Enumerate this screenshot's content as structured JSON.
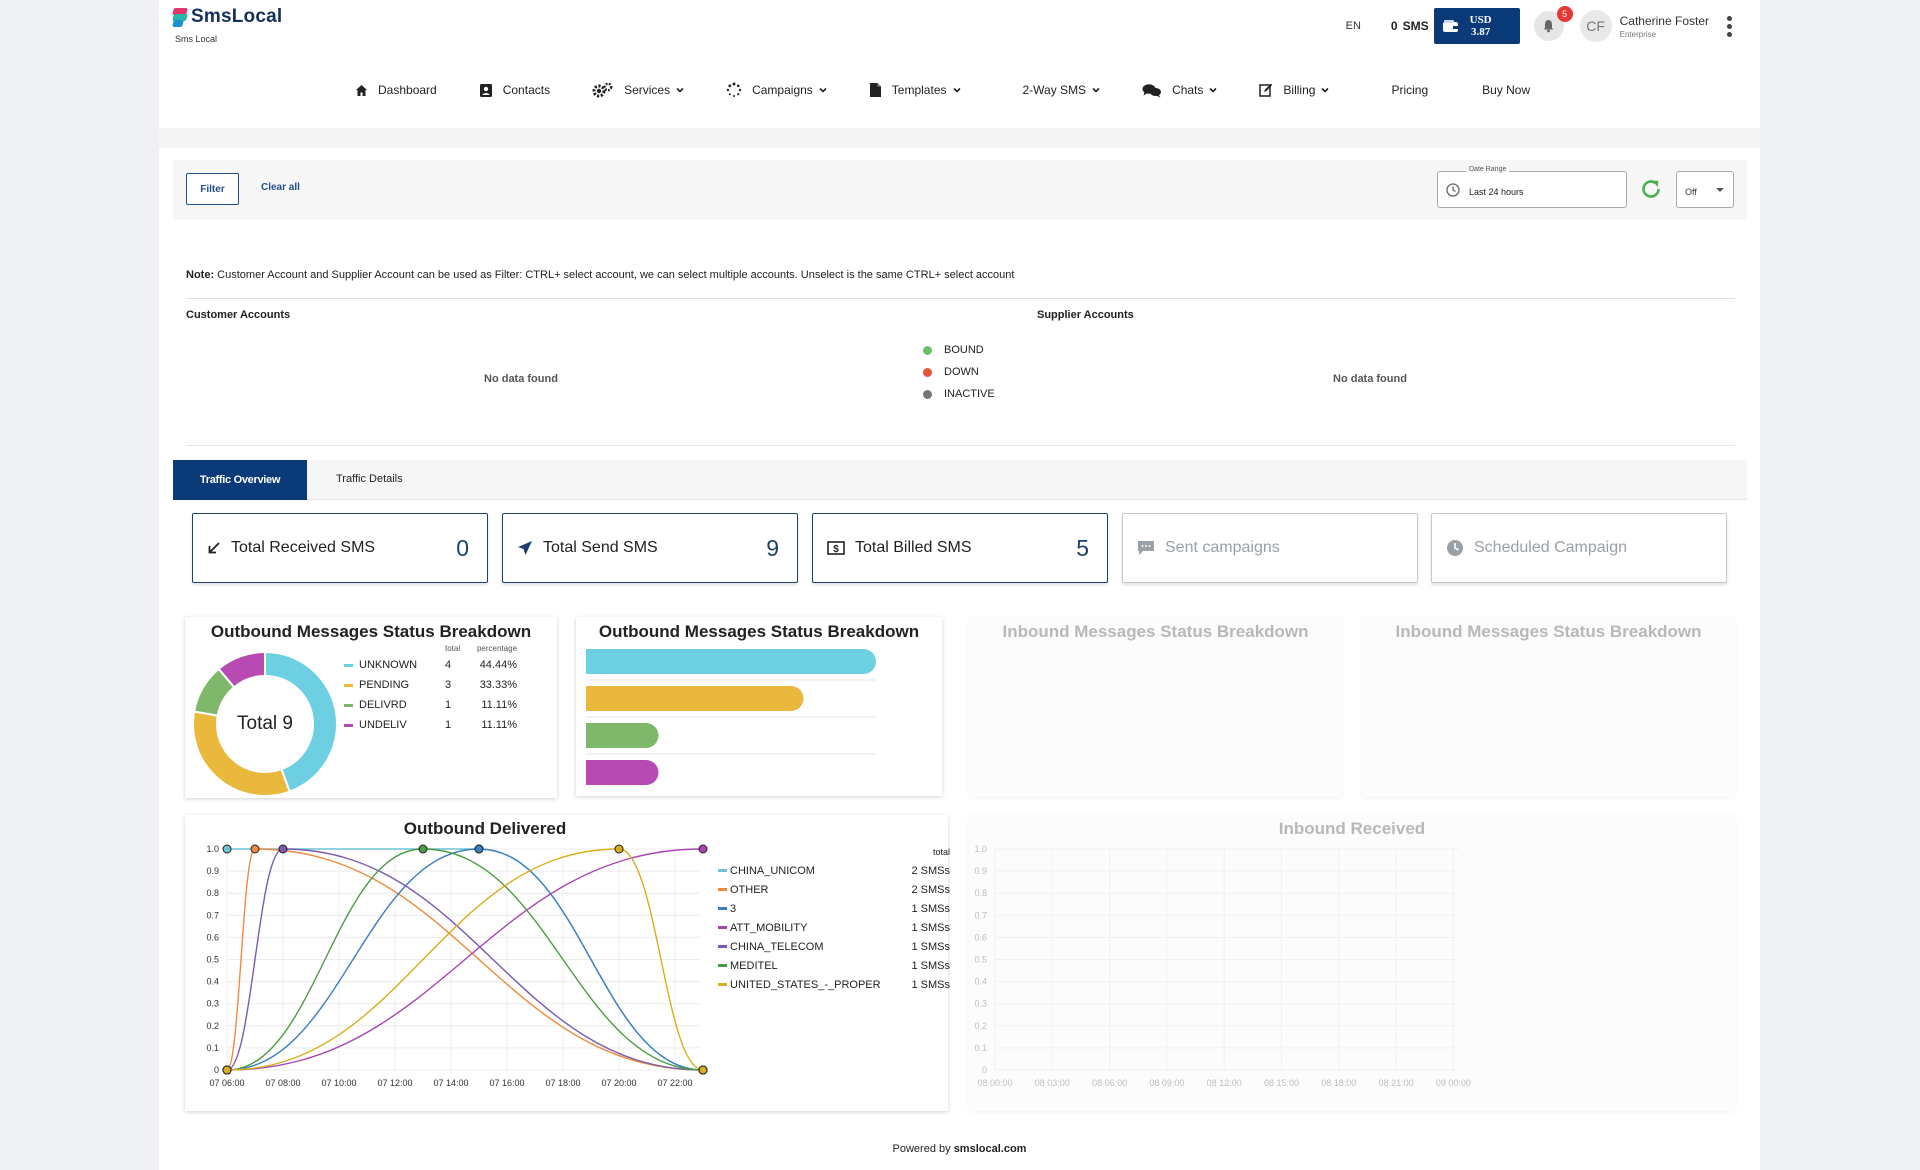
{
  "header": {
    "brand": "SmsLocal",
    "brand_sub": "Sms Local",
    "language": "EN",
    "sms_count": "0",
    "sms_label": "SMS",
    "wallet_currency": "USD",
    "wallet_amount": "3.87",
    "notifications": "5",
    "avatar_initials": "CF",
    "user_name": "Catherine Foster",
    "user_role": "Enterprise"
  },
  "nav": [
    {
      "label": "Dashboard",
      "icon": "home-icon"
    },
    {
      "label": "Contacts",
      "icon": "contacts-icon"
    },
    {
      "label": "Services",
      "icon": "gears-icon",
      "dropdown": true
    },
    {
      "label": "Campaigns",
      "icon": "spinner-icon",
      "dropdown": true
    },
    {
      "label": "Templates",
      "icon": "document-icon",
      "dropdown": true
    },
    {
      "label": "2-Way SMS",
      "dropdown": true
    },
    {
      "label": "Chats",
      "icon": "chat-icon",
      "dropdown": true
    },
    {
      "label": "Billing",
      "icon": "edit-icon",
      "dropdown": true
    },
    {
      "label": "Pricing"
    },
    {
      "label": "Buy Now"
    }
  ],
  "filter": {
    "filter_label": "Filter",
    "clear_label": "Clear all",
    "date_range_label": "Date Range",
    "date_range_value": "Last 24 hours",
    "refresh_select": "Off"
  },
  "accounts": {
    "note_prefix": "Note:",
    "note_text": "Customer Account and Supplier Account can be used as Filter: CTRL+ select account, we can select multiple accounts. Unselect is the same CTRL+ select account",
    "customer_title": "Customer Accounts",
    "supplier_title": "Supplier Accounts",
    "customer_empty": "No data found",
    "supplier_empty": "No data found",
    "status_legend": [
      {
        "label": "BOUND",
        "color": "#6abf69"
      },
      {
        "label": "DOWN",
        "color": "#e5533d"
      },
      {
        "label": "INACTIVE",
        "color": "#777777"
      }
    ]
  },
  "tabs": {
    "active": "Traffic Overview",
    "other": "Traffic Details"
  },
  "cards": [
    {
      "label": "Total Received SMS",
      "value": "0",
      "icon": "arrow-down-left-icon"
    },
    {
      "label": "Total Send SMS",
      "value": "9",
      "icon": "paper-plane-icon"
    },
    {
      "label": "Total Billed SMS",
      "value": "5",
      "icon": "dollar-bill-icon"
    },
    {
      "label": "Sent campaigns",
      "icon": "message-icon"
    },
    {
      "label": "Scheduled Campaign",
      "icon": "clock-icon"
    }
  ],
  "panels": {
    "outbound_donut_title": "Outbound Messages Status Breakdown",
    "outbound_bar_title": "Outbound Messages Status Breakdown",
    "inbound_title_1": "Inbound Messages Status Breakdown",
    "inbound_title_2": "Inbound Messages Status Breakdown",
    "outbound_delivered_title": "Outbound Delivered",
    "inbound_received_title": "Inbound Received",
    "donut_center": "Total 9",
    "donut_head_total": "total",
    "donut_head_pct": "percentage",
    "delivered_legend_head": "total"
  },
  "chart_data": [
    {
      "type": "pie",
      "title": "Outbound Messages Status Breakdown",
      "center_label": "Total 9",
      "categories": [
        "UNKNOWN",
        "PENDING",
        "DELIVRD",
        "UNDELIV"
      ],
      "values": [
        4,
        3,
        1,
        1
      ],
      "percentages": [
        "44.44%",
        "33.33%",
        "11.11%",
        "11.11%"
      ],
      "colors": [
        "#6cd0e2",
        "#e9b83c",
        "#7fb86a",
        "#b84bb3"
      ]
    },
    {
      "type": "bar",
      "orientation": "horizontal",
      "title": "Outbound Messages Status Breakdown",
      "categories": [
        "UNKNOWN",
        "PENDING",
        "DELIVRD",
        "UNDELIV"
      ],
      "values": [
        4,
        3,
        1,
        1
      ],
      "colors": [
        "#6cd0e2",
        "#e9b83c",
        "#7fb86a",
        "#b84bb3"
      ]
    },
    {
      "type": "line",
      "title": "Outbound Delivered",
      "ylim": [
        0,
        1.0
      ],
      "y_ticks": [
        "0",
        "0.1",
        "0.2",
        "0.3",
        "0.4",
        "0.5",
        "0.6",
        "0.7",
        "0.8",
        "0.9",
        "1.0"
      ],
      "x_ticks": [
        "07 06:00",
        "07 08:00",
        "07 10:00",
        "07 12:00",
        "07 14:00",
        "07 16:00",
        "07 18:00",
        "07 20:00",
        "07 22:00"
      ],
      "xlim_hours": [
        6,
        23
      ],
      "series": [
        {
          "name": "CHINA_UNICOM",
          "total": "2 SMSs",
          "color": "#6cc3d2",
          "x": [
            6,
            15,
            23
          ],
          "y": [
            1,
            1,
            0
          ]
        },
        {
          "name": "OTHER",
          "total": "2 SMSs",
          "color": "#ef8a3c",
          "x": [
            6,
            7,
            23
          ],
          "y": [
            0,
            1,
            0
          ]
        },
        {
          "name": "3",
          "total": "1 SMSs",
          "color": "#3a7fc1",
          "x": [
            6,
            15,
            23
          ],
          "y": [
            0,
            1,
            0
          ]
        },
        {
          "name": "ATT_MOBILITY",
          "total": "1 SMSs",
          "color": "#a744b2",
          "x": [
            6,
            23
          ],
          "y": [
            0,
            1
          ]
        },
        {
          "name": "CHINA_TELECOM",
          "total": "1 SMSs",
          "color": "#7b5bb0",
          "x": [
            6,
            8,
            23
          ],
          "y": [
            0,
            1,
            0
          ]
        },
        {
          "name": "MEDITEL",
          "total": "1 SMSs",
          "color": "#4f9a46",
          "x": [
            6,
            13,
            23
          ],
          "y": [
            0,
            1,
            0
          ]
        },
        {
          "name": "UNITED_STATES_-_PROPER",
          "total": "1 SMSs",
          "color": "#d9ae1e",
          "x": [
            6,
            20,
            23
          ],
          "y": [
            0,
            1,
            0
          ]
        }
      ]
    },
    {
      "type": "line",
      "title": "Inbound Received",
      "ylim": [
        0,
        1.0
      ],
      "y_ticks": [
        "0",
        "0.1",
        "0.2",
        "0.3",
        "0.4",
        "0.5",
        "0.6",
        "0.7",
        "0.8",
        "0.9",
        "1.0"
      ],
      "x_ticks": [
        "08 00:00",
        "08 03:00",
        "08 06:00",
        "08 09:00",
        "08 12:00",
        "08 15:00",
        "08 18:00",
        "08 21:00",
        "09 00:00"
      ],
      "series": []
    }
  ],
  "footer": {
    "prefix": "Powered by",
    "brand": "smslocal.com"
  }
}
